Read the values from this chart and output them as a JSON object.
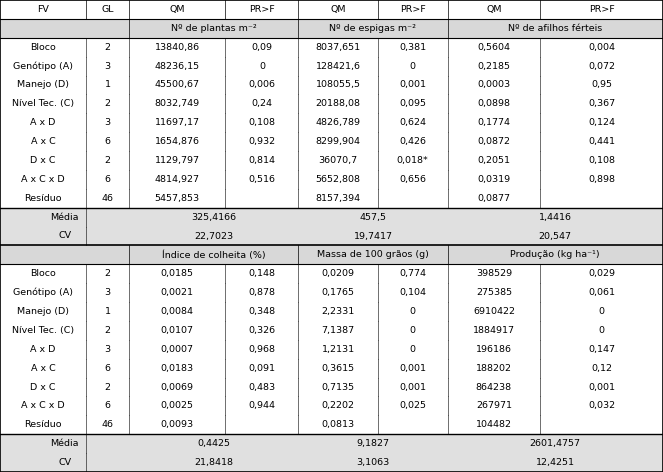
{
  "col_headers": [
    "FV",
    "GL",
    "QM",
    "PR>F",
    "QM",
    "PR>F",
    "QM",
    "PR>F"
  ],
  "subheaders": [
    "Nº de plantas m⁻²",
    "Nº de espigas m⁻²",
    "Nº de afilhos férteis"
  ],
  "subheaders2": [
    "Índice de colheita (%)",
    "Massa de 100 grãos (g)",
    "Produção (kg ha⁻¹)"
  ],
  "rows1": [
    [
      "Bloco",
      "2",
      "13840,86",
      "0,09",
      "8037,651",
      "0,381",
      "0,5604",
      "0,004"
    ],
    [
      "Genótipo (A)",
      "3",
      "48236,15",
      "0",
      "128421,6",
      "0",
      "0,2185",
      "0,072"
    ],
    [
      "Manejo (D)",
      "1",
      "45500,67",
      "0,006",
      "108055,5",
      "0,001",
      "0,0003",
      "0,95"
    ],
    [
      "Nível Tec. (C)",
      "2",
      "8032,749",
      "0,24",
      "20188,08",
      "0,095",
      "0,0898",
      "0,367"
    ],
    [
      "A x D",
      "3",
      "11697,17",
      "0,108",
      "4826,789",
      "0,624",
      "0,1774",
      "0,124"
    ],
    [
      "A x C",
      "6",
      "1654,876",
      "0,932",
      "8299,904",
      "0,426",
      "0,0872",
      "0,441"
    ],
    [
      "D x C",
      "2",
      "1129,797",
      "0,814",
      "36070,7",
      "0,018*",
      "0,2051",
      "0,108"
    ],
    [
      "A x C x D",
      "6",
      "4814,927",
      "0,516",
      "5652,808",
      "0,656",
      "0,0319",
      "0,898"
    ],
    [
      "Resíduo",
      "46",
      "5457,853",
      "",
      "8157,394",
      "",
      "0,0877",
      ""
    ]
  ],
  "summary1": [
    [
      "Média",
      "325,4166",
      "457,5",
      "1,4416"
    ],
    [
      "CV",
      "22,7023",
      "19,7417",
      "20,547"
    ]
  ],
  "rows2": [
    [
      "Bloco",
      "2",
      "0,0185",
      "0,148",
      "0,0209",
      "0,774",
      "398529",
      "0,029"
    ],
    [
      "Genótipo (A)",
      "3",
      "0,0021",
      "0,878",
      "0,1765",
      "0,104",
      "275385",
      "0,061"
    ],
    [
      "Manejo (D)",
      "1",
      "0,0084",
      "0,348",
      "2,2331",
      "0",
      "6910422",
      "0"
    ],
    [
      "Nível Tec. (C)",
      "2",
      "0,0107",
      "0,326",
      "7,1387",
      "0",
      "1884917",
      "0"
    ],
    [
      "A x D",
      "3",
      "0,0007",
      "0,968",
      "1,2131",
      "0",
      "196186",
      "0,147"
    ],
    [
      "A x C",
      "6",
      "0,0183",
      "0,091",
      "0,3615",
      "0,001",
      "188202",
      "0,12"
    ],
    [
      "D x C",
      "2",
      "0,0069",
      "0,483",
      "0,7135",
      "0,001",
      "864238",
      "0,001"
    ],
    [
      "A x C x D",
      "6",
      "0,0025",
      "0,944",
      "0,2202",
      "0,025",
      "267971",
      "0,032"
    ],
    [
      "Resíduo",
      "46",
      "0,0093",
      "",
      "0,0813",
      "",
      "104482",
      ""
    ]
  ],
  "summary2": [
    [
      "Média",
      "0,4425",
      "9,1827",
      "2601,4757"
    ],
    [
      "CV",
      "21,8418",
      "3,1063",
      "12,4251"
    ]
  ],
  "cols": [
    0.0,
    0.13,
    0.195,
    0.34,
    0.45,
    0.57,
    0.675,
    0.815,
    1.0
  ],
  "row_heights": [
    1.0,
    1.0,
    1.0,
    1.0,
    1.0,
    1.0,
    1.0,
    1.0,
    1.0,
    1.0,
    1.0,
    1.0,
    1.0,
    1.0,
    1.0,
    1.0,
    1.0,
    1.0,
    1.0,
    1.0,
    1.0,
    1.0,
    1.0,
    1.0,
    1.0
  ],
  "bg_subheader": "#d8d8d8",
  "bg_summary": "#e0e0e0",
  "fs": 6.8
}
